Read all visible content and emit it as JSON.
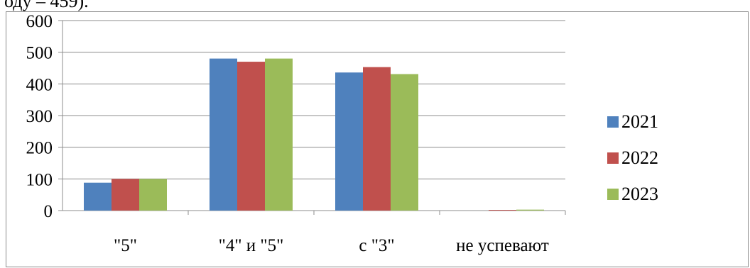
{
  "page": {
    "top_fragment": "оду – 459)."
  },
  "chart_data": {
    "type": "bar",
    "categories": [
      "\"5\"",
      "\"4\" и \"5\"",
      "с \"3\"",
      "не успевают"
    ],
    "series": [
      {
        "name": "2021",
        "color": "#4f81bd",
        "values": [
          88,
          480,
          436,
          0
        ]
      },
      {
        "name": "2022",
        "color": "#c0504d",
        "values": [
          100,
          470,
          453,
          2
        ]
      },
      {
        "name": "2023",
        "color": "#9bbb59",
        "values": [
          100,
          480,
          431,
          3
        ]
      }
    ],
    "yticks": [
      "0",
      "100",
      "200",
      "300",
      "400",
      "500",
      "600"
    ],
    "ylim": [
      0,
      600
    ],
    "grid": true,
    "legend": "right"
  }
}
